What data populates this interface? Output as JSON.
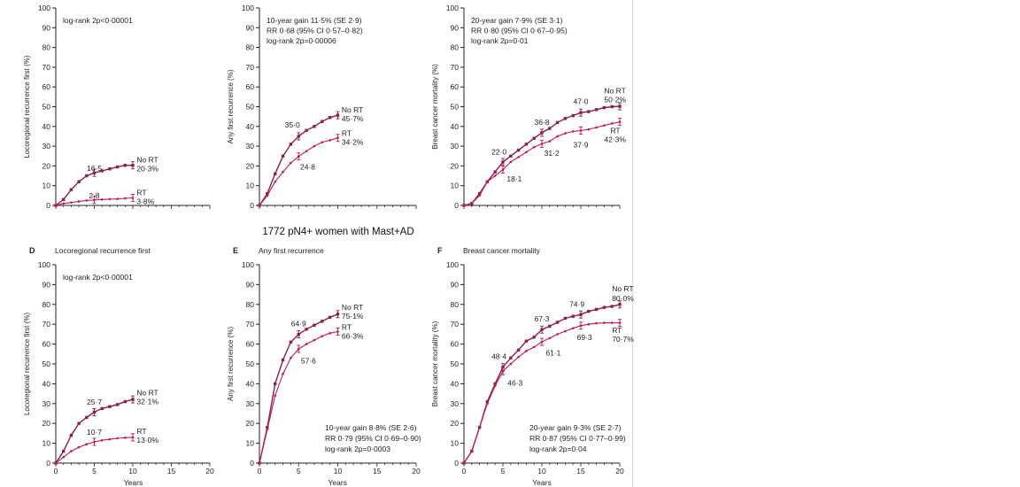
{
  "figure": {
    "middle_heading": "1772 pN4+ women with Mast+AD",
    "x_axis_label": "Years",
    "colors": {
      "noRT": "#8b1e4a",
      "RT": "#c2185b",
      "axis": "#222222"
    }
  },
  "chart_data": [
    {
      "type": "line",
      "id": "A",
      "letter": "",
      "title": "",
      "ylabel": "Locoregional recurrence first (%)",
      "xlabel": "",
      "xlim": [
        0,
        20
      ],
      "ylim": [
        0,
        100
      ],
      "xticks": [],
      "yticks": [
        0,
        10,
        20,
        30,
        40,
        50,
        60,
        70,
        80,
        90,
        100
      ],
      "grid": false,
      "stats": [
        "log-rank 2p<0·00001"
      ],
      "stats_pos": "top",
      "series": [
        {
          "name": "No RT",
          "key": "noRT",
          "x": [
            0,
            1,
            2,
            3,
            4,
            5,
            6,
            7,
            8,
            9,
            10
          ],
          "y": [
            0,
            3,
            8,
            12,
            15,
            16.5,
            17.5,
            18.5,
            19.5,
            20.3,
            20.3
          ]
        },
        {
          "name": "RT",
          "key": "RT",
          "x": [
            0,
            1,
            2,
            3,
            4,
            5,
            6,
            7,
            8,
            9,
            10
          ],
          "y": [
            0,
            1,
            1.5,
            2,
            2.5,
            2.8,
            3,
            3.2,
            3.3,
            3.6,
            3.8
          ]
        }
      ],
      "annotations": [
        {
          "text": "16·5",
          "x": 5,
          "y": 16.5,
          "pos": "above"
        },
        {
          "text": "2·8",
          "x": 5,
          "y": 2.8,
          "pos": "above"
        },
        {
          "text": "No RT",
          "x": 10.5,
          "y": 23,
          "pos": "right"
        },
        {
          "text": "20·3%",
          "x": 10.5,
          "y": 18.5,
          "pos": "right"
        },
        {
          "text": "RT",
          "x": 10.5,
          "y": 6.5,
          "pos": "right"
        },
        {
          "text": "3·8%",
          "x": 10.5,
          "y": 2,
          "pos": "right"
        }
      ]
    },
    {
      "type": "line",
      "id": "B",
      "letter": "",
      "title": "",
      "ylabel": "Any first recurrence (%)",
      "xlabel": "",
      "xlim": [
        0,
        20
      ],
      "ylim": [
        0,
        100
      ],
      "xticks": [],
      "yticks": [
        0,
        10,
        20,
        30,
        40,
        50,
        60,
        70,
        80,
        90,
        100
      ],
      "grid": false,
      "stats": [
        "10-year gain 11·5% (SE 2·9)",
        "RR 0·68 (95% CI 0·57–0·82)",
        "log-rank 2p=0·00006"
      ],
      "stats_pos": "top",
      "series": [
        {
          "name": "No RT",
          "key": "noRT",
          "x": [
            0,
            1,
            2,
            3,
            4,
            5,
            6,
            7,
            8,
            9,
            10
          ],
          "y": [
            0,
            6,
            16,
            25,
            31,
            35,
            38,
            40,
            42.5,
            44.5,
            45.7
          ]
        },
        {
          "name": "RT",
          "key": "RT",
          "x": [
            0,
            1,
            2,
            3,
            4,
            5,
            6,
            7,
            8,
            9,
            10
          ],
          "y": [
            0,
            5,
            12,
            17,
            21.5,
            24.8,
            27.5,
            30,
            32,
            33,
            34.2
          ]
        }
      ],
      "annotations": [
        {
          "text": "35·0",
          "x": 4.2,
          "y": 38.5,
          "pos": "above"
        },
        {
          "text": "24·8",
          "x": 5.2,
          "y": 19.5,
          "pos": "right"
        },
        {
          "text": "No RT",
          "x": 10.5,
          "y": 48.5,
          "pos": "right"
        },
        {
          "text": "45·7%",
          "x": 10.5,
          "y": 44,
          "pos": "right"
        },
        {
          "text": "RT",
          "x": 10.5,
          "y": 36.5,
          "pos": "right"
        },
        {
          "text": "34·2%",
          "x": 10.5,
          "y": 32,
          "pos": "right"
        }
      ]
    },
    {
      "type": "line",
      "id": "C",
      "letter": "",
      "title": "",
      "ylabel": "Breast cancer mortality (%)",
      "xlabel": "",
      "xlim": [
        0,
        20
      ],
      "ylim": [
        0,
        100
      ],
      "xticks": [],
      "yticks": [
        0,
        10,
        20,
        30,
        40,
        50,
        60,
        70,
        80,
        90,
        100
      ],
      "grid": false,
      "stats": [
        "20-year gain 7·9% (SE 3·1)",
        "RR 0·80 (95% CI 0·67–0·95)",
        "log-rank 2p=0·01"
      ],
      "stats_pos": "top",
      "series": [
        {
          "name": "No RT",
          "key": "noRT",
          "x": [
            0,
            1,
            2,
            3,
            4,
            5,
            6,
            7,
            8,
            9,
            10,
            11,
            12,
            13,
            14,
            15,
            16,
            17,
            18,
            19,
            20
          ],
          "y": [
            0,
            1,
            6,
            12,
            17,
            22,
            25,
            28,
            31,
            34,
            36.8,
            39,
            42,
            44,
            45.5,
            47,
            47.5,
            48.5,
            49.5,
            50,
            50.2
          ]
        },
        {
          "name": "RT",
          "key": "RT",
          "x": [
            0,
            1,
            2,
            3,
            4,
            5,
            6,
            7,
            8,
            9,
            10,
            11,
            12,
            13,
            14,
            15,
            16,
            17,
            18,
            19,
            20
          ],
          "y": [
            0,
            1,
            5,
            12,
            15,
            18.1,
            22,
            24.5,
            27,
            29.5,
            31.2,
            32.5,
            35,
            36.5,
            37.5,
            37.9,
            38.5,
            39.5,
            40.5,
            41.5,
            42.3
          ]
        }
      ],
      "annotations": [
        {
          "text": "22·0",
          "x": 4.5,
          "y": 25,
          "pos": "above"
        },
        {
          "text": "18·1",
          "x": 5.5,
          "y": 13.5,
          "pos": "right"
        },
        {
          "text": "36·8",
          "x": 10,
          "y": 40,
          "pos": "above"
        },
        {
          "text": "31·2",
          "x": 10.3,
          "y": 26.5,
          "pos": "right"
        },
        {
          "text": "47·0",
          "x": 15,
          "y": 50.5,
          "pos": "above"
        },
        {
          "text": "37·9",
          "x": 15,
          "y": 33,
          "pos": "below"
        },
        {
          "text": "No RT",
          "x": 18,
          "y": 58,
          "pos": "right"
        },
        {
          "text": "50·2%",
          "x": 18,
          "y": 53.5,
          "pos": "right"
        },
        {
          "text": "RT",
          "x": 18.8,
          "y": 38,
          "pos": "right"
        },
        {
          "text": "42·3%",
          "x": 18,
          "y": 33.5,
          "pos": "right"
        }
      ]
    },
    {
      "type": "line",
      "id": "D",
      "letter": "D",
      "title": "Locoregional recurrence first",
      "ylabel": "Locoregional recurrence first (%)",
      "xlabel": "Years",
      "xlim": [
        0,
        20
      ],
      "ylim": [
        0,
        100
      ],
      "xticks": [
        0,
        5,
        10,
        15,
        20
      ],
      "yticks": [
        0,
        10,
        20,
        30,
        40,
        50,
        60,
        70,
        80,
        90,
        100
      ],
      "grid": false,
      "stats": [
        "log-rank 2p<0·00001"
      ],
      "stats_pos": "top",
      "series": [
        {
          "name": "No RT",
          "key": "noRT",
          "x": [
            0,
            1,
            2,
            3,
            4,
            5,
            6,
            7,
            8,
            9,
            10
          ],
          "y": [
            0,
            6,
            14,
            20,
            23,
            25.7,
            27.5,
            28.5,
            29.5,
            31,
            32.1
          ]
        },
        {
          "name": "RT",
          "key": "RT",
          "x": [
            0,
            1,
            2,
            3,
            4,
            5,
            6,
            7,
            8,
            9,
            10
          ],
          "y": [
            0,
            3,
            6,
            8,
            9.5,
            10.7,
            11.5,
            12,
            12.5,
            12.8,
            13
          ]
        }
      ],
      "annotations": [
        {
          "text": "25·7",
          "x": 5,
          "y": 28.5,
          "pos": "above"
        },
        {
          "text": "10·7",
          "x": 5,
          "y": 13.5,
          "pos": "above"
        },
        {
          "text": "No RT",
          "x": 10.5,
          "y": 35.5,
          "pos": "right"
        },
        {
          "text": "32·1%",
          "x": 10.5,
          "y": 31,
          "pos": "right"
        },
        {
          "text": "RT",
          "x": 10.5,
          "y": 16,
          "pos": "right"
        },
        {
          "text": "13·0%",
          "x": 10.5,
          "y": 11.5,
          "pos": "right"
        }
      ]
    },
    {
      "type": "line",
      "id": "E",
      "letter": "E",
      "title": "Any first recurrence",
      "ylabel": "Any first recurrence (%)",
      "xlabel": "Years",
      "xlim": [
        0,
        20
      ],
      "ylim": [
        0,
        100
      ],
      "xticks": [
        0,
        5,
        10,
        15,
        20
      ],
      "yticks": [
        0,
        10,
        20,
        30,
        40,
        50,
        60,
        70,
        80,
        90,
        100
      ],
      "grid": false,
      "stats": [
        "10-year gain 8·8% (SE 2·6)",
        "RR 0·79 (95% CI 0·69–0·90)",
        "log-rank 2p=0·0003"
      ],
      "stats_pos": "bottom",
      "series": [
        {
          "name": "No RT",
          "key": "noRT",
          "x": [
            0,
            1,
            2,
            3,
            4,
            5,
            6,
            7,
            8,
            9,
            10
          ],
          "y": [
            0,
            18,
            40,
            52,
            61,
            64.9,
            67.5,
            69.5,
            71.5,
            73.5,
            75.1
          ]
        },
        {
          "name": "RT",
          "key": "RT",
          "x": [
            0,
            1,
            2,
            3,
            4,
            5,
            6,
            7,
            8,
            9,
            10
          ],
          "y": [
            0,
            17,
            34,
            45,
            53,
            57.6,
            60,
            62,
            64,
            65.5,
            66.3
          ]
        }
      ],
      "annotations": [
        {
          "text": "64·9",
          "x": 5,
          "y": 68,
          "pos": "above"
        },
        {
          "text": "57·6",
          "x": 5.3,
          "y": 51.5,
          "pos": "right"
        },
        {
          "text": "No RT",
          "x": 10.5,
          "y": 78.5,
          "pos": "right"
        },
        {
          "text": "75·1%",
          "x": 10.5,
          "y": 74,
          "pos": "right"
        },
        {
          "text": "RT",
          "x": 10.5,
          "y": 68.5,
          "pos": "right"
        },
        {
          "text": "66·3%",
          "x": 10.5,
          "y": 64,
          "pos": "right"
        }
      ]
    },
    {
      "type": "line",
      "id": "F",
      "letter": "F",
      "title": "Breast cancer mortality",
      "ylabel": "Breast cancer mortality (%)",
      "xlabel": "Years",
      "xlim": [
        0,
        20
      ],
      "ylim": [
        0,
        100
      ],
      "xticks": [
        0,
        5,
        10,
        15,
        20
      ],
      "yticks": [
        0,
        10,
        20,
        30,
        40,
        50,
        60,
        70,
        80,
        90,
        100
      ],
      "grid": false,
      "stats": [
        "20-year gain 9·3% (SE 2·7)",
        "RR 0·87 (95% CI 0·77–0·99)",
        "log-rank 2p=0·04"
      ],
      "stats_pos": "bottom",
      "series": [
        {
          "name": "No RT",
          "key": "noRT",
          "x": [
            0,
            1,
            2,
            3,
            4,
            5,
            6,
            7,
            8,
            9,
            10,
            11,
            12,
            13,
            14,
            15,
            16,
            17,
            18,
            19,
            20
          ],
          "y": [
            0,
            6,
            18,
            31,
            40,
            48.4,
            53,
            57,
            61.5,
            63.5,
            67.3,
            69,
            71,
            73,
            74,
            74.9,
            76.5,
            77.5,
            78.5,
            79,
            80
          ]
        },
        {
          "name": "RT",
          "key": "RT",
          "x": [
            0,
            1,
            2,
            3,
            4,
            5,
            6,
            7,
            8,
            9,
            10,
            11,
            12,
            13,
            14,
            15,
            16,
            17,
            18,
            19,
            20
          ],
          "y": [
            0,
            6,
            18,
            30,
            39,
            46.3,
            50,
            53.5,
            56.5,
            58.5,
            61.1,
            63,
            65,
            66.5,
            68,
            69.3,
            70,
            70.5,
            70.7,
            70.7,
            70.7
          ]
        }
      ],
      "annotations": [
        {
          "text": "48·4",
          "x": 4.5,
          "y": 51.5,
          "pos": "above"
        },
        {
          "text": "46·3",
          "x": 5.6,
          "y": 40.5,
          "pos": "right"
        },
        {
          "text": "67·3",
          "x": 10,
          "y": 70.5,
          "pos": "above"
        },
        {
          "text": "61·1",
          "x": 10.5,
          "y": 55.5,
          "pos": "right"
        },
        {
          "text": "74·9",
          "x": 14.5,
          "y": 78,
          "pos": "above"
        },
        {
          "text": "69·3",
          "x": 14.5,
          "y": 63.5,
          "pos": "right"
        },
        {
          "text": "No RT",
          "x": 19,
          "y": 88,
          "pos": "right"
        },
        {
          "text": "80·0%",
          "x": 19,
          "y": 83,
          "pos": "right"
        },
        {
          "text": "RT",
          "x": 19,
          "y": 67,
          "pos": "right"
        },
        {
          "text": "70·7%",
          "x": 19,
          "y": 62.5,
          "pos": "right"
        }
      ]
    }
  ]
}
